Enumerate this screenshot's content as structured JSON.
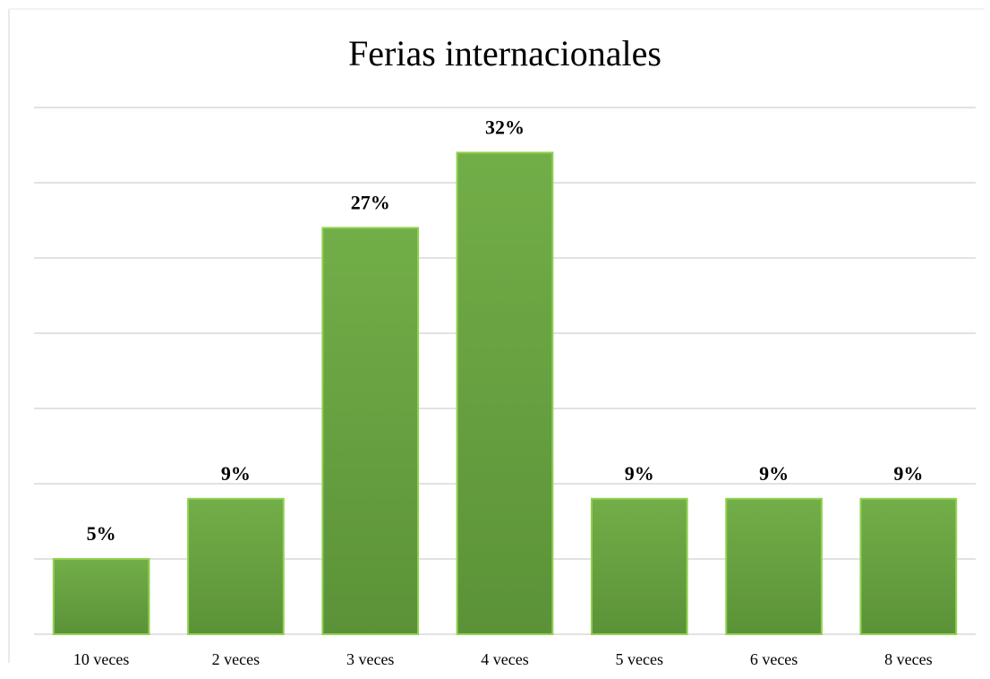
{
  "chart_data": {
    "type": "bar",
    "title": "Ferias internacionales",
    "categories": [
      "10 veces",
      "2 veces",
      "3 veces",
      "4 veces",
      "5 veces",
      "6 veces",
      "8 veces"
    ],
    "values": [
      5,
      9,
      27,
      32,
      9,
      9,
      9
    ],
    "value_labels": [
      "5%",
      "9%",
      "27%",
      "32%",
      "9%",
      "9%",
      "9%"
    ],
    "color": "#6aa443",
    "ylim": [
      0,
      35
    ],
    "yticks": [
      0,
      5,
      10,
      15,
      20,
      25,
      30,
      35
    ],
    "grid": true
  }
}
